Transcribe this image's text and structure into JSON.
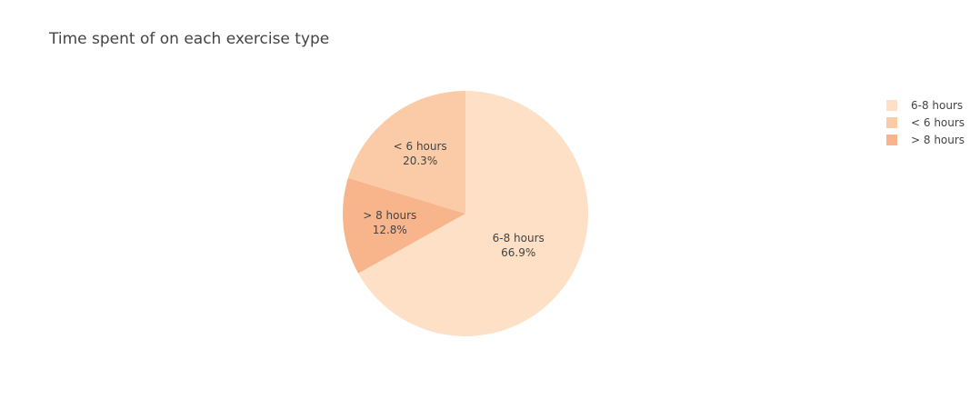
{
  "chart_data": {
    "type": "pie",
    "title": "Time spent of on each exercise type",
    "slices": [
      {
        "label": "6-8 hours",
        "percent": 66.9,
        "percent_text": "66.9%",
        "color": "#fde0c5"
      },
      {
        "label": "< 6 hours",
        "percent": 20.3,
        "percent_text": "20.3%",
        "color": "#facba6"
      },
      {
        "label": "> 8 hours",
        "percent": 12.8,
        "percent_text": "12.8%",
        "color": "#f8b58b"
      }
    ],
    "legend_order": [
      "6-8 hours",
      "< 6 hours",
      "> 8 hours"
    ],
    "legend_position": "top-right",
    "start_angle": "12 o'clock",
    "direction": "clockwise"
  }
}
